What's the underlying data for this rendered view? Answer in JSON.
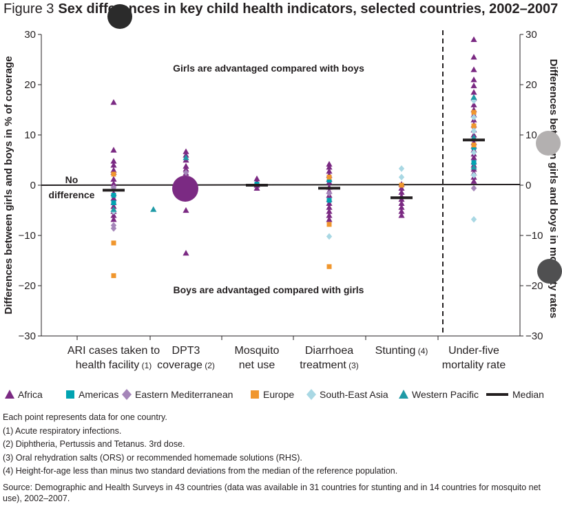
{
  "figure_number": "Figure 3",
  "title": "Sex differences in key child health indicators, selected countries, 2002–2007",
  "chart_data": {
    "type": "scatter",
    "ylim": [
      -30,
      30
    ],
    "yticks": [
      -30,
      -20,
      -10,
      0,
      10,
      20,
      30
    ],
    "ylabel_left": "Differences between girls and boys in % of coverage",
    "ylabel_right": "Differences between girls and boys in mortality rates",
    "annotations": {
      "girls_advantaged": "Girls are advantaged compared with boys",
      "boys_advantaged": "Boys are advantaged compared with girls",
      "no_difference_1": "No",
      "no_difference_2": "difference"
    },
    "categories": [
      {
        "line1": "ARI cases taken to",
        "line2": "health facility",
        "note": "(1)"
      },
      {
        "line1": "DPT3",
        "line2": "coverage",
        "note": "(2)"
      },
      {
        "line1": "Mosquito",
        "line2": "net use",
        "note": ""
      },
      {
        "line1": "Diarrhoea",
        "line2": "treatment",
        "note": "(3)"
      },
      {
        "line1": "Stunting",
        "line2": "",
        "note": "(4)"
      },
      {
        "line1": "Under-five",
        "line2": "mortality rate",
        "note": ""
      }
    ],
    "medians": [
      -1,
      -0.8,
      0,
      -0.6,
      -2.5,
      9
    ],
    "series": [
      {
        "name": "Africa",
        "symbol": "triangle",
        "color": "#7b2a83",
        "points": [
          [
            0,
            16.5
          ],
          [
            0,
            7
          ],
          [
            0,
            4.8
          ],
          [
            0,
            4
          ],
          [
            0,
            3
          ],
          [
            0,
            2.6
          ],
          [
            0,
            1.2
          ],
          [
            0,
            0.3
          ],
          [
            0,
            -0.7
          ],
          [
            0,
            -1.6
          ],
          [
            0,
            -2.6
          ],
          [
            0,
            -3.4
          ],
          [
            0,
            -4.2
          ],
          [
            0,
            -5.2
          ],
          [
            0,
            -6
          ],
          [
            0,
            -6.8
          ],
          [
            1,
            6.7
          ],
          [
            1,
            6
          ],
          [
            1,
            5
          ],
          [
            1,
            3.8
          ],
          [
            1,
            3.2
          ],
          [
            1,
            2.4
          ],
          [
            1,
            1.2
          ],
          [
            1,
            0.6
          ],
          [
            1,
            -0.4
          ],
          [
            1,
            -1.2
          ],
          [
            1,
            -1.8
          ],
          [
            1,
            -2.6
          ],
          [
            1,
            -5
          ],
          [
            1,
            -13.5
          ],
          [
            2,
            1.3
          ],
          [
            2,
            0.6
          ],
          [
            2,
            0
          ],
          [
            2,
            -0.6
          ],
          [
            3,
            4.2
          ],
          [
            3,
            3.6
          ],
          [
            3,
            2.8
          ],
          [
            3,
            2
          ],
          [
            3,
            1.2
          ],
          [
            3,
            0.6
          ],
          [
            3,
            -0.4
          ],
          [
            3,
            -1.2
          ],
          [
            3,
            -2
          ],
          [
            3,
            -2.8
          ],
          [
            3,
            -3.6
          ],
          [
            3,
            -4.4
          ],
          [
            3,
            -5.2
          ],
          [
            3,
            -6
          ],
          [
            3,
            -6.8
          ],
          [
            4,
            0.2
          ],
          [
            4,
            -0.6
          ],
          [
            4,
            -1.4
          ],
          [
            4,
            -2.2
          ],
          [
            4,
            -2.8
          ],
          [
            4,
            -3.6
          ],
          [
            4,
            -4.4
          ],
          [
            4,
            -5.2
          ],
          [
            4,
            -6
          ],
          [
            5,
            29
          ],
          [
            5,
            25.5
          ],
          [
            5,
            23
          ],
          [
            5,
            21
          ],
          [
            5,
            19.8
          ],
          [
            5,
            18.5
          ],
          [
            5,
            17.3
          ],
          [
            5,
            16
          ],
          [
            5,
            15
          ],
          [
            5,
            14
          ],
          [
            5,
            13
          ],
          [
            5,
            12
          ],
          [
            5,
            11
          ],
          [
            5,
            10
          ],
          [
            5,
            9.2
          ],
          [
            5,
            8.5
          ],
          [
            5,
            7.8
          ],
          [
            5,
            7
          ],
          [
            5,
            6.2
          ],
          [
            5,
            5.5
          ],
          [
            5,
            4.7
          ],
          [
            5,
            4
          ],
          [
            5,
            3.2
          ],
          [
            5,
            2.4
          ],
          [
            5,
            1.6
          ],
          [
            5,
            0.8
          ]
        ]
      },
      {
        "name": "Americas",
        "symbol": "square",
        "color": "#00a3b1",
        "points": [
          [
            0,
            -2
          ],
          [
            0,
            -3.5
          ],
          [
            2,
            0.2
          ],
          [
            3,
            1
          ],
          [
            3,
            -3
          ],
          [
            5,
            7.5
          ],
          [
            5,
            4.5
          ]
        ]
      },
      {
        "name": "Eastern Mediterranean",
        "symbol": "diamond",
        "color": "#a585b9",
        "points": [
          [
            0,
            -8
          ],
          [
            0,
            -8.6
          ],
          [
            0,
            -0.5
          ],
          [
            1,
            2.5
          ],
          [
            3,
            -1.6
          ],
          [
            5,
            11.5
          ],
          [
            5,
            -0.6
          ]
        ]
      },
      {
        "name": "Europe",
        "symbol": "square",
        "color": "#f0962d",
        "points": [
          [
            0,
            2.2
          ],
          [
            0,
            -11.5
          ],
          [
            0,
            -18
          ],
          [
            3,
            1.6
          ],
          [
            3,
            -7.8
          ],
          [
            3,
            -16.2
          ],
          [
            4,
            0
          ],
          [
            5,
            14.5
          ],
          [
            5,
            11.8
          ],
          [
            5,
            8
          ]
        ]
      },
      {
        "name": "South-East Asia",
        "symbol": "diamond",
        "color": "#a9d8e4",
        "points": [
          [
            0,
            -5.2
          ],
          [
            3,
            -10.2
          ],
          [
            4,
            3.3
          ],
          [
            4,
            1.6
          ],
          [
            5,
            16.8
          ],
          [
            5,
            13.5
          ],
          [
            5,
            10.8
          ],
          [
            5,
            6.5
          ],
          [
            5,
            2
          ],
          [
            5,
            -6.8
          ]
        ]
      },
      {
        "name": "Western Pacific",
        "symbol": "triangle",
        "color": "#1f9aa6",
        "points": [
          [
            0,
            -4.8
          ],
          [
            0.55,
            -4.8
          ],
          [
            1,
            5.5
          ],
          [
            5,
            17.5
          ],
          [
            5,
            9.5
          ],
          [
            5,
            3.6
          ]
        ]
      }
    ]
  },
  "legend": [
    {
      "label": "Africa",
      "symbol": "triangle",
      "color": "#7b2a83"
    },
    {
      "label": "Americas",
      "symbol": "square",
      "color": "#00a3b1"
    },
    {
      "label": "Eastern Mediterranean",
      "symbol": "diamond",
      "color": "#a585b9"
    },
    {
      "label": "Europe",
      "symbol": "square",
      "color": "#f0962d"
    },
    {
      "label": "South-East Asia",
      "symbol": "diamond",
      "color": "#a9d8e4"
    },
    {
      "label": "Western Pacific",
      "symbol": "triangle",
      "color": "#1f9aa6"
    },
    {
      "label": "Median",
      "symbol": "line",
      "color": "#231f20"
    }
  ],
  "notes": [
    "Each point represents data for one country.",
    "(1) Acute respiratory infections.",
    "(2) Diphtheria, Pertussis and Tetanus. 3rd dose.",
    "(3) Oral rehydration salts (ORS) or recommended homemade solutions (RHS).",
    "(4) Height-for-age less than minus two standard deviations from the median of the reference population."
  ],
  "source": "Source: Demographic and Health Surveys in 43 countries (data was available in 31 countries for stunting and in 14 countries for mosquito net use), 2002–2007."
}
